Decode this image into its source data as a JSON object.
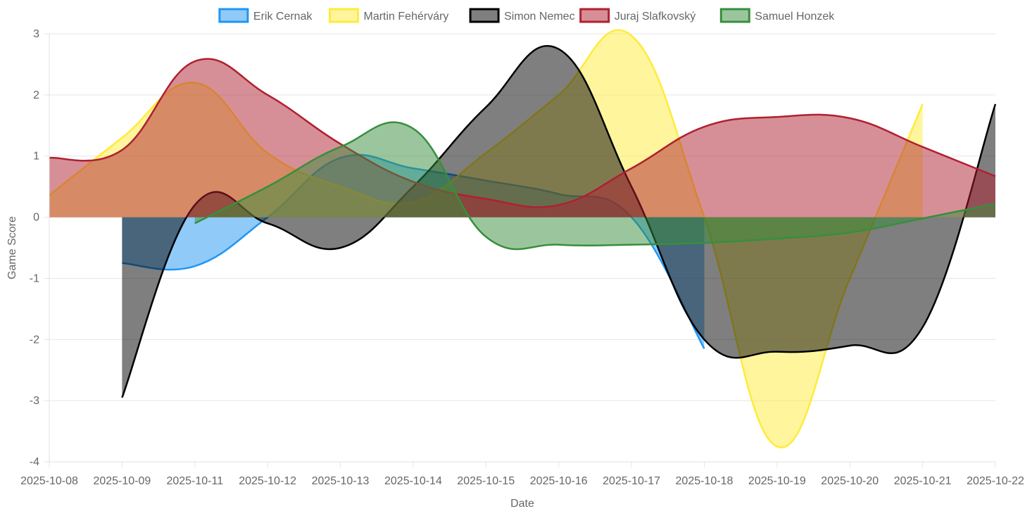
{
  "chart_data": {
    "type": "area",
    "xlabel": "Date",
    "ylabel": "Game Score",
    "ylim": [
      -4,
      3
    ],
    "y_ticks": [
      3,
      2,
      1,
      0,
      -1,
      -2,
      -3,
      -4
    ],
    "grid": true,
    "legend_position": "top",
    "fill_origin": 0,
    "categories": [
      "2025-10-08",
      "2025-10-09",
      "2025-10-11",
      "2025-10-12",
      "2025-10-13",
      "2025-10-14",
      "2025-10-15",
      "2025-10-16",
      "2025-10-17",
      "2025-10-18",
      "2025-10-19",
      "2025-10-20",
      "2025-10-21",
      "2025-10-22"
    ],
    "series": [
      {
        "name": "Erik Cernak",
        "color": "#2196F3",
        "fill": "rgba(33,150,243,0.5)",
        "values": [
          null,
          -0.75,
          -0.8,
          0.0,
          0.97,
          0.8,
          0.6,
          0.38,
          0.0,
          -2.15,
          null,
          null,
          null,
          null
        ]
      },
      {
        "name": "Martin Fehérváry",
        "color": "#FFEB3B",
        "fill": "rgba(255,235,59,0.5)",
        "values": [
          0.36,
          1.3,
          2.2,
          1.05,
          0.5,
          0.25,
          1.05,
          2.0,
          2.97,
          0.0,
          -3.75,
          -1.0,
          1.85,
          null
        ]
      },
      {
        "name": "Simon Nemec",
        "color": "#000000",
        "fill": "rgba(0,0,0,0.5)",
        "values": [
          null,
          -2.95,
          0.2,
          -0.1,
          -0.5,
          0.5,
          1.8,
          2.75,
          0.5,
          -2.0,
          -2.2,
          -2.1,
          -1.8,
          1.85
        ]
      },
      {
        "name": "Juraj Slafkovský",
        "color": "#B02030",
        "fill": "rgba(176,32,48,0.5)",
        "values": [
          0.97,
          1.1,
          2.55,
          2.0,
          1.2,
          0.58,
          0.3,
          0.2,
          0.8,
          1.48,
          1.64,
          1.62,
          1.15,
          0.67
        ]
      },
      {
        "name": "Samuel Honzek",
        "color": "#388E3C",
        "fill": "rgba(56,142,60,0.5)",
        "values": [
          null,
          null,
          -0.1,
          0.5,
          1.15,
          1.45,
          -0.32,
          -0.45,
          -0.45,
          -0.42,
          -0.35,
          -0.25,
          -0.02,
          0.22
        ]
      }
    ]
  }
}
